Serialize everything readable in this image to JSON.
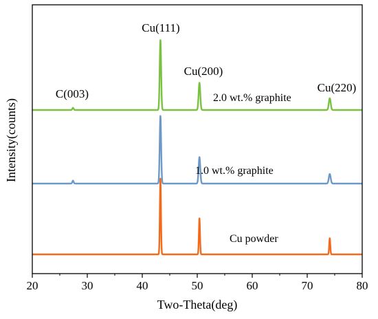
{
  "chart_data": {
    "type": "line",
    "xlabel": "Two-Theta(deg)",
    "ylabel": "Intensity(counts)",
    "xlim": [
      20,
      80
    ],
    "xticks": [
      20,
      30,
      40,
      50,
      60,
      70,
      80
    ],
    "yticks_shown": false,
    "grid": false,
    "legend": "none",
    "annotations": [
      {
        "text": "C(003)",
        "x": 27.4
      },
      {
        "text": "Cu(111)",
        "x": 43.3
      },
      {
        "text": "Cu(200)",
        "x": 50.4
      },
      {
        "text": "Cu(220)",
        "x": 74.1
      }
    ],
    "series": [
      {
        "name": "2.0 wt.% graphite",
        "color": "#7ac142",
        "baseline": 2.0,
        "peaks": [
          {
            "x": 27.4,
            "height": 0.03,
            "width": 0.12
          },
          {
            "x": 43.3,
            "height": 0.95,
            "width": 0.13
          },
          {
            "x": 50.4,
            "height": 0.37,
            "width": 0.15
          },
          {
            "x": 74.1,
            "height": 0.16,
            "width": 0.17
          }
        ]
      },
      {
        "name": "1.0 wt.% graphite",
        "color": "#6e99c7",
        "baseline": 1.0,
        "peaks": [
          {
            "x": 27.4,
            "height": 0.04,
            "width": 0.12
          },
          {
            "x": 43.3,
            "height": 0.92,
            "width": 0.13
          },
          {
            "x": 50.4,
            "height": 0.36,
            "width": 0.15
          },
          {
            "x": 74.1,
            "height": 0.13,
            "width": 0.17
          }
        ]
      },
      {
        "name": "Cu powder",
        "color": "#f26b1d",
        "baseline": 0.0,
        "peaks": [
          {
            "x": 43.3,
            "height": 1.03,
            "width": 0.1
          },
          {
            "x": 50.4,
            "height": 0.49,
            "width": 0.1
          },
          {
            "x": 74.1,
            "height": 0.22,
            "width": 0.1
          }
        ]
      }
    ]
  }
}
